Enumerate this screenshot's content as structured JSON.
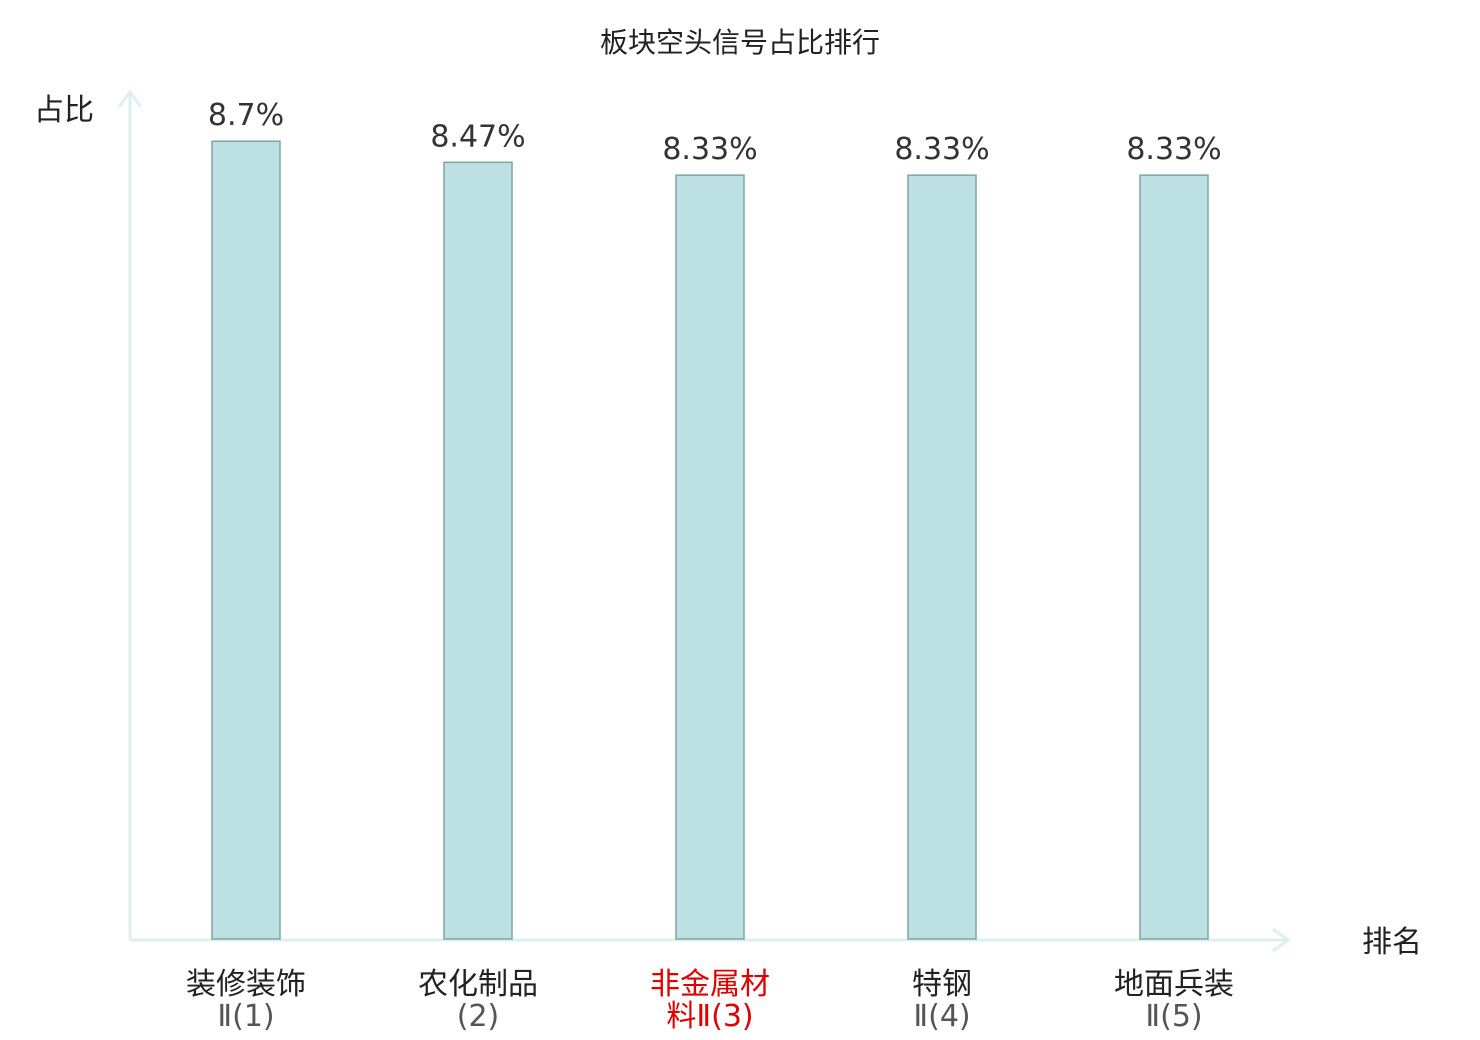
{
  "chart_data": {
    "type": "bar",
    "title": "板块空头信号占比排行",
    "ylabel": "占比",
    "xlabel": "排名",
    "ylim": [
      0,
      10
    ],
    "grid": false,
    "categories": [
      {
        "name": "装修装饰",
        "suffix": "Ⅱ(1)",
        "highlight": false
      },
      {
        "name": "农化制品",
        "suffix": "(2)",
        "highlight": false
      },
      {
        "name": "非金属材料",
        "suffix": "Ⅱ(3)",
        "highlight": true
      },
      {
        "name": "特钢",
        "suffix": "Ⅱ(4)",
        "highlight": false
      },
      {
        "name": "地面兵装",
        "suffix": "Ⅱ(5)",
        "highlight": false
      }
    ],
    "values": [
      8.7,
      8.47,
      8.33,
      8.33,
      8.33
    ],
    "value_labels": [
      "8.7%",
      "8.47%",
      "8.33%",
      "8.33%",
      "8.33%"
    ],
    "colors": {
      "bar_fill": "#bde1e3",
      "bar_stroke": "#7fa4a6",
      "axis": "#ddf1ee",
      "highlight": "#e00000"
    }
  }
}
